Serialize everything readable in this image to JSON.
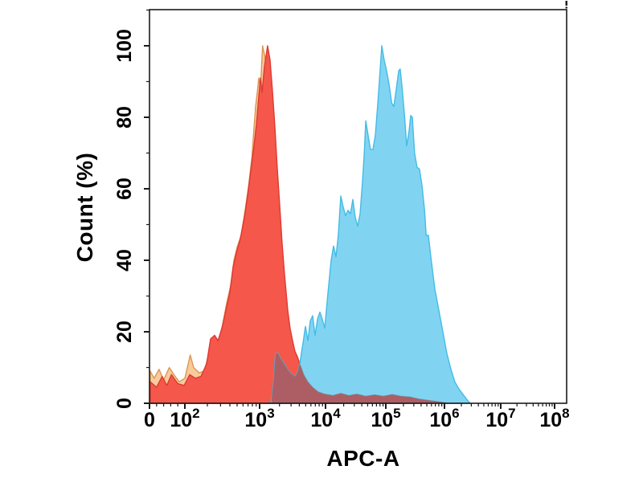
{
  "chart_data": {
    "type": "area",
    "subtype": "flow-cytometry-overlaid-histograms",
    "title": "",
    "xlabel": "APC-A",
    "ylabel": "Count (%)",
    "grid": false,
    "legend": "none",
    "x_axis": {
      "scale": "logicle",
      "range_display": [
        "0",
        "10^8"
      ],
      "ticks": [
        {
          "base": "0",
          "exp": "",
          "value": 0,
          "frac": 0.0
        },
        {
          "base": "10",
          "exp": "2",
          "value": 100,
          "frac": 0.0848
        },
        {
          "base": "10",
          "exp": "3",
          "value": 1000,
          "frac": 0.264
        },
        {
          "base": "10",
          "exp": "4",
          "value": 10000,
          "frac": 0.422
        },
        {
          "base": "10",
          "exp": "5",
          "value": 100000,
          "frac": 0.5665
        },
        {
          "base": "10",
          "exp": "6",
          "value": 1000000,
          "frac": 0.7071
        },
        {
          "base": "10",
          "exp": "7",
          "value": 10000000,
          "frac": 0.842
        },
        {
          "base": "10",
          "exp": "8",
          "value": 100000000,
          "frac": 0.9711
        }
      ],
      "minor_ticks_linear_segment": [
        20,
        40,
        60,
        80
      ],
      "minor_ticks_per_decade": [
        2,
        3,
        4,
        5,
        6,
        7,
        8,
        9
      ]
    },
    "y_axis": {
      "range": [
        0,
        110
      ],
      "major_ticks": [
        0,
        20,
        40,
        60,
        80,
        100
      ],
      "minor_ticks": [
        10,
        30,
        50,
        70,
        90,
        110
      ],
      "tick_label_rotation_deg": -90
    },
    "colors": {
      "axis": "#1a1a1a",
      "background": "#ffffff",
      "red_blue_overlap_fill": "#ad5e64",
      "overlap_edge": "rgba(105,140,155,0.55)"
    },
    "series": [
      {
        "name": "orange-histogram",
        "fill": "#f7cb9c",
        "stroke": "#dd9450",
        "peak_value": 1110,
        "peak_pct": 100,
        "points": [
          [
            2,
            9
          ],
          [
            13,
            7
          ],
          [
            27,
            9.5
          ],
          [
            40,
            6.5
          ],
          [
            56,
            10
          ],
          [
            69,
            8
          ],
          [
            84,
            6
          ],
          [
            100,
            7
          ],
          [
            118,
            13.5
          ],
          [
            131,
            10
          ],
          [
            156,
            8.5
          ],
          [
            181,
            9
          ],
          [
            205,
            13
          ],
          [
            226,
            16.5
          ],
          [
            256,
            18.5
          ],
          [
            283,
            17.5
          ],
          [
            320,
            22
          ],
          [
            362,
            28
          ],
          [
            410,
            33
          ],
          [
            453,
            40
          ],
          [
            497,
            43.5
          ],
          [
            566,
            47
          ],
          [
            640,
            54
          ],
          [
            713,
            61
          ],
          [
            791,
            69
          ],
          [
            841,
            77
          ],
          [
            884,
            83
          ],
          [
            930,
            87
          ],
          [
            975,
            91
          ],
          [
            1030,
            88
          ],
          [
            1110,
            100
          ],
          [
            1200,
            97
          ],
          [
            1320,
            90
          ],
          [
            1440,
            82
          ],
          [
            1620,
            68
          ],
          [
            1800,
            54
          ],
          [
            2020,
            40
          ],
          [
            2250,
            28
          ],
          [
            2530,
            19
          ],
          [
            2840,
            13
          ],
          [
            3290,
            9
          ],
          [
            3740,
            6
          ],
          [
            4470,
            4
          ],
          [
            5400,
            2.5
          ],
          [
            6860,
            1.8
          ],
          [
            8800,
            1.2
          ],
          [
            11800,
            0.8
          ],
          [
            16000,
            0
          ]
        ]
      },
      {
        "name": "red-histogram",
        "fill": "#f5574b",
        "stroke": "#dd3a31",
        "peak_value": 1320,
        "peak_pct": 100,
        "points": [
          [
            2,
            6
          ],
          [
            20,
            4.5
          ],
          [
            36,
            7.5
          ],
          [
            49,
            5
          ],
          [
            62,
            8
          ],
          [
            80,
            5.5
          ],
          [
            98,
            5
          ],
          [
            116,
            8
          ],
          [
            138,
            7
          ],
          [
            164,
            7.5
          ],
          [
            195,
            11
          ],
          [
            221,
            18
          ],
          [
            250,
            19
          ],
          [
            277,
            17.5
          ],
          [
            313,
            21
          ],
          [
            353,
            26
          ],
          [
            400,
            31
          ],
          [
            442,
            38
          ],
          [
            487,
            42
          ],
          [
            552,
            46
          ],
          [
            625,
            52
          ],
          [
            690,
            58
          ],
          [
            762,
            65
          ],
          [
            841,
            72
          ],
          [
            906,
            78
          ],
          [
            975,
            86
          ],
          [
            1030,
            91
          ],
          [
            1090,
            87
          ],
          [
            1180,
            94
          ],
          [
            1320,
            100
          ],
          [
            1440,
            96
          ],
          [
            1570,
            87
          ],
          [
            1710,
            77
          ],
          [
            1850,
            66
          ],
          [
            2020,
            55
          ],
          [
            2190,
            45
          ],
          [
            2390,
            36
          ],
          [
            2670,
            26
          ],
          [
            2900,
            21
          ],
          [
            3160,
            17.5
          ],
          [
            3440,
            14.5
          ],
          [
            3740,
            13
          ],
          [
            4190,
            10.5
          ],
          [
            4690,
            8
          ],
          [
            5400,
            6
          ],
          [
            6380,
            4.5
          ],
          [
            7760,
            3.2
          ],
          [
            9720,
            2.6
          ],
          [
            13200,
            2.2
          ],
          [
            17900,
            2.8
          ],
          [
            24400,
            2.2
          ],
          [
            33100,
            2.6
          ],
          [
            46500,
            2
          ],
          [
            65000,
            2.4
          ],
          [
            91200,
            2
          ],
          [
            129000,
            2.5
          ],
          [
            182000,
            2
          ],
          [
            257000,
            1.8
          ],
          [
            376000,
            1.2
          ],
          [
            566000,
            0.8
          ],
          [
            855000,
            0.4
          ],
          [
            1180000,
            0
          ]
        ]
      },
      {
        "name": "blue-histogram",
        "fill": "#80d4f2",
        "stroke": "#44bbe5",
        "peak_value": 85700,
        "peak_pct": 100,
        "points": [
          [
            1480,
            0
          ],
          [
            1610,
            5
          ],
          [
            1750,
            14
          ],
          [
            1910,
            14
          ],
          [
            2080,
            12.5
          ],
          [
            2260,
            11.5
          ],
          [
            2460,
            10.5
          ],
          [
            2670,
            9.5
          ],
          [
            2900,
            8.5
          ],
          [
            3160,
            8
          ],
          [
            3440,
            7.5
          ],
          [
            3740,
            8.5
          ],
          [
            4070,
            11
          ],
          [
            4310,
            14
          ],
          [
            4560,
            17
          ],
          [
            4960,
            21.5
          ],
          [
            5400,
            17.5
          ],
          [
            5860,
            23
          ],
          [
            6380,
            24.5
          ],
          [
            6930,
            19
          ],
          [
            7550,
            23.5
          ],
          [
            8220,
            25.5
          ],
          [
            8930,
            23.5
          ],
          [
            9730,
            21
          ],
          [
            11000,
            31
          ],
          [
            12400,
            40
          ],
          [
            13600,
            44
          ],
          [
            14900,
            41
          ],
          [
            16300,
            47
          ],
          [
            17900,
            58
          ],
          [
            19600,
            55
          ],
          [
            21500,
            52.5
          ],
          [
            23600,
            54
          ],
          [
            25900,
            53
          ],
          [
            28400,
            57
          ],
          [
            31100,
            52
          ],
          [
            34100,
            49.5
          ],
          [
            37400,
            53
          ],
          [
            41000,
            62
          ],
          [
            43900,
            70
          ],
          [
            46500,
            79
          ],
          [
            50800,
            75
          ],
          [
            55600,
            71
          ],
          [
            61100,
            71
          ],
          [
            67100,
            75
          ],
          [
            73700,
            84
          ],
          [
            81000,
            94
          ],
          [
            85700,
            100
          ],
          [
            94000,
            96
          ],
          [
            103000,
            93
          ],
          [
            114000,
            89
          ],
          [
            126000,
            84
          ],
          [
            137000,
            83
          ],
          [
            151000,
            88
          ],
          [
            166000,
            93
          ],
          [
            176000,
            93.5
          ],
          [
            188000,
            89
          ],
          [
            207000,
            81
          ],
          [
            227000,
            72
          ],
          [
            249000,
            76
          ],
          [
            266000,
            80.5
          ],
          [
            283000,
            80
          ],
          [
            309000,
            70
          ],
          [
            341000,
            66
          ],
          [
            375000,
            65.5
          ],
          [
            414000,
            61
          ],
          [
            457000,
            54
          ],
          [
            487000,
            47
          ],
          [
            532000,
            47
          ],
          [
            585000,
            41
          ],
          [
            685000,
            32
          ],
          [
            802000,
            26
          ],
          [
            940000,
            20
          ],
          [
            1100000,
            14
          ],
          [
            1300000,
            9.5
          ],
          [
            1530000,
            6
          ],
          [
            1810000,
            4
          ],
          [
            2130000,
            2.5
          ],
          [
            2510000,
            1
          ],
          [
            2870000,
            0
          ]
        ]
      }
    ]
  }
}
